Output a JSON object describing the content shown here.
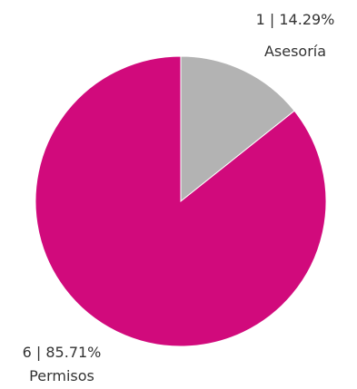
{
  "chart_data": {
    "type": "pie",
    "slices": [
      {
        "category": "Asesoría",
        "value": 1,
        "percent": "14.29%",
        "value_label": "1 | 14.29%",
        "color": "#b3b3b3"
      },
      {
        "category": "Permisos",
        "value": 6,
        "percent": "85.71%",
        "value_label": "6 | 85.71%",
        "color": "#d10a7c"
      }
    ]
  }
}
